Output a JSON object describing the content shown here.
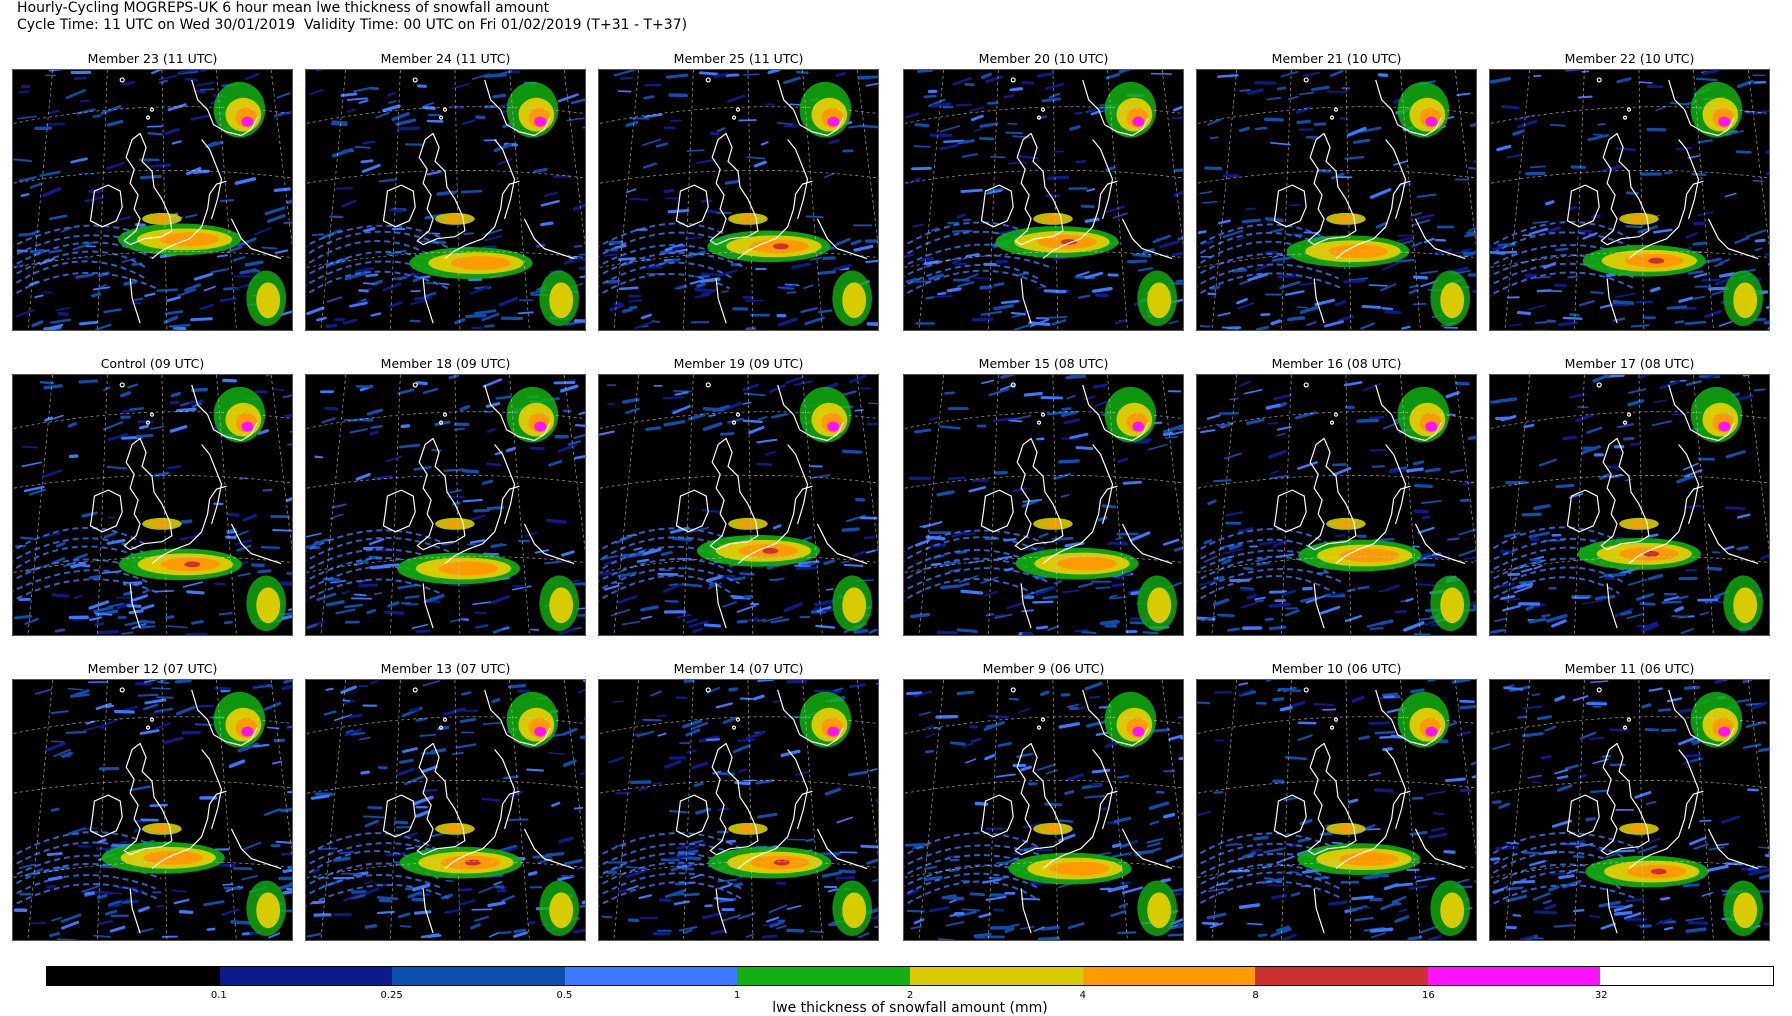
{
  "header": {
    "title": "Hourly-Cycling MOGREPS-UK 6 hour mean lwe thickness of snowfall amount",
    "subtitle": "Cycle Time: 11 UTC on Wed 30/01/2019  Validity Time: 00 UTC on Fri 01/02/2019 (T+31 - T+37)"
  },
  "panels": [
    {
      "title": "Member 23 (11 UTC)"
    },
    {
      "title": "Member 24 (11 UTC)"
    },
    {
      "title": "Member 25 (11 UTC)"
    },
    {
      "title": "Member 20 (10 UTC)"
    },
    {
      "title": "Member 21 (10 UTC)"
    },
    {
      "title": "Member 22 (10 UTC)"
    },
    {
      "title": "Control (09 UTC)"
    },
    {
      "title": "Member 18 (09 UTC)"
    },
    {
      "title": "Member 19 (09 UTC)"
    },
    {
      "title": "Member 15 (08 UTC)"
    },
    {
      "title": "Member 16 (08 UTC)"
    },
    {
      "title": "Member 17 (08 UTC)"
    },
    {
      "title": "Member 12 (07 UTC)"
    },
    {
      "title": "Member 13 (07 UTC)"
    },
    {
      "title": "Member 14 (07 UTC)"
    },
    {
      "title": "Member 9 (06 UTC)"
    },
    {
      "title": "Member 10 (06 UTC)"
    },
    {
      "title": "Member 11 (06 UTC)"
    }
  ],
  "colorbar": {
    "colors": [
      "#000000",
      "#0c1a8c",
      "#0d4fb0",
      "#3a78ff",
      "#12b012",
      "#d8cc00",
      "#ff9a00",
      "#cc3030",
      "#ff10ff",
      "#ffffff"
    ],
    "ticks": [
      "0.1",
      "0.25",
      "0.5",
      "1",
      "2",
      "4",
      "8",
      "16",
      "32"
    ],
    "label": "lwe thickness of snowfall amount (mm)"
  }
}
